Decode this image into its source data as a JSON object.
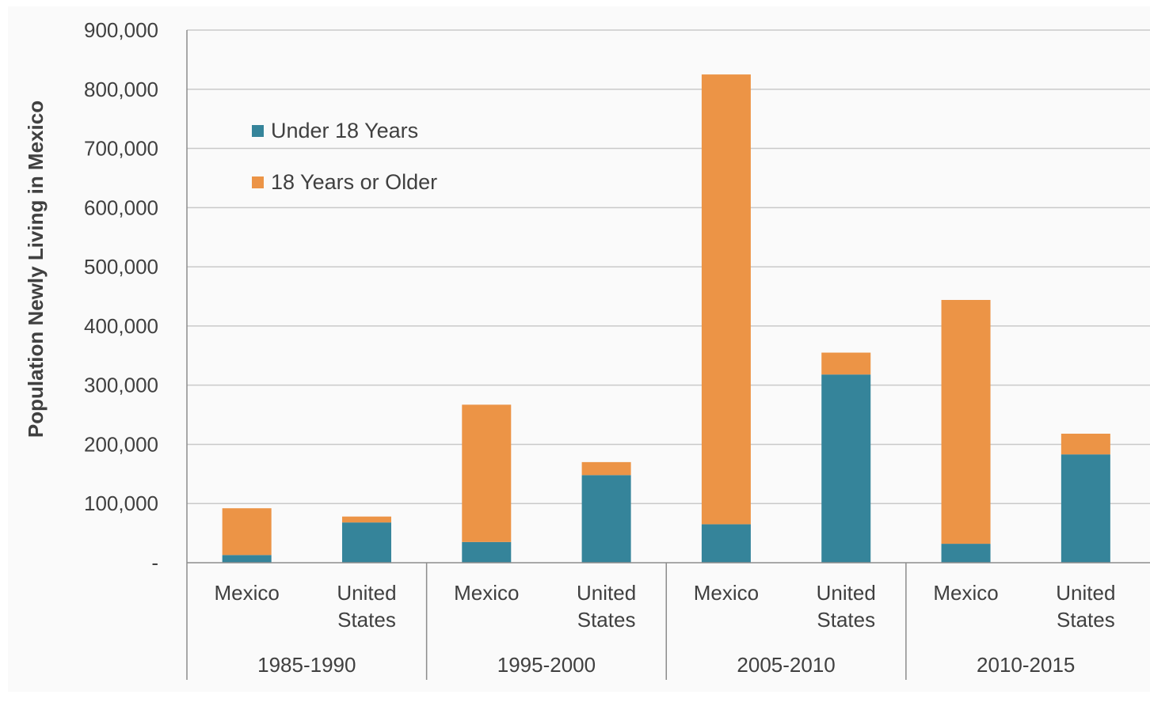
{
  "chart_data": {
    "type": "bar",
    "stacked": true,
    "ylabel": "Population Newly Living in Mexico",
    "ylim": [
      0,
      900000
    ],
    "yticks": [
      {
        "value": 0,
        "label": "-"
      },
      {
        "value": 100000,
        "label": "100,000"
      },
      {
        "value": 200000,
        "label": "200,000"
      },
      {
        "value": 300000,
        "label": "300,000"
      },
      {
        "value": 400000,
        "label": "400,000"
      },
      {
        "value": 500000,
        "label": "500,000"
      },
      {
        "value": 600000,
        "label": "600,000"
      },
      {
        "value": 700000,
        "label": "700,000"
      },
      {
        "value": 800000,
        "label": "800,000"
      },
      {
        "value": 900000,
        "label": "900,000"
      }
    ],
    "groups": [
      {
        "label": "1985-1990",
        "categories": [
          {
            "line1": "Mexico",
            "line2": ""
          },
          {
            "line1": "United",
            "line2": "States"
          }
        ]
      },
      {
        "label": "1995-2000",
        "categories": [
          {
            "line1": "Mexico",
            "line2": ""
          },
          {
            "line1": "United",
            "line2": "States"
          }
        ]
      },
      {
        "label": "2005-2010",
        "categories": [
          {
            "line1": "Mexico",
            "line2": ""
          },
          {
            "line1": "United",
            "line2": "States"
          }
        ]
      },
      {
        "label": "2010-2015",
        "categories": [
          {
            "line1": "Mexico",
            "line2": ""
          },
          {
            "line1": "United",
            "line2": "States"
          }
        ]
      }
    ],
    "series": [
      {
        "name": "Under 18 Years",
        "color": "#35849a",
        "values": [
          13000,
          68000,
          35000,
          148000,
          65000,
          318000,
          32000,
          183000
        ]
      },
      {
        "name": "18 Years or Older",
        "color": "#ec9446",
        "values": [
          79000,
          10000,
          232000,
          22000,
          760000,
          37000,
          412000,
          35000
        ]
      }
    ],
    "legend": "top-left",
    "grid": true
  }
}
